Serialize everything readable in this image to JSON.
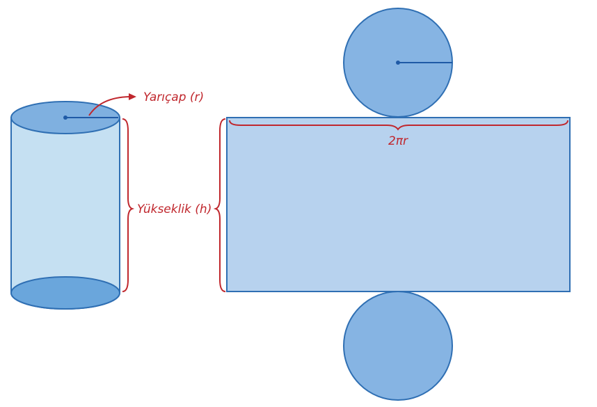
{
  "labels": {
    "radius": "Yarıçap (r)",
    "height": "Yükseklik (h)",
    "circumference": "2πr"
  },
  "colors": {
    "top_face": "#7fb0e0",
    "side_fill": "#c5e0f2",
    "bottom_face": "#6aa6dc",
    "outline": "#2f6fb3",
    "rect_fill": "#b7d2ee",
    "circle_fill": "#86b4e3",
    "annotation": "#c0272d",
    "radius_line": "#1f5aa6"
  }
}
